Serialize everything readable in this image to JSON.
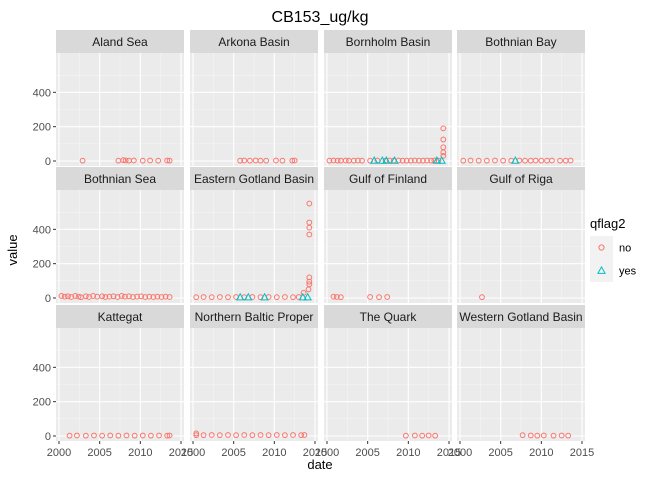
{
  "chart_data": {
    "type": "scatter",
    "title": "CB153_ug/kg",
    "xlabel": "date",
    "ylabel": "value",
    "xlim": [
      2000,
      2015
    ],
    "ylim": [
      0,
      600
    ],
    "x_ticks": [
      2000,
      2005,
      2010,
      2015
    ],
    "y_ticks": [
      0,
      200,
      400
    ],
    "grid": true,
    "legend": {
      "title": "qflag2",
      "position": "right",
      "entries": [
        {
          "label": "no",
          "shape": "circle",
          "color": "#F8766D"
        },
        {
          "label": "yes",
          "shape": "triangle",
          "color": "#00BFC4"
        }
      ]
    },
    "panels": [
      {
        "name": "Aland Sea",
        "no": [
          [
            2002.9,
            2
          ],
          [
            2007.3,
            2
          ],
          [
            2007.9,
            5
          ],
          [
            2008.2,
            3
          ],
          [
            2008.6,
            2
          ],
          [
            2009.2,
            3
          ],
          [
            2010.3,
            2
          ],
          [
            2011.2,
            3
          ],
          [
            2012.2,
            2
          ],
          [
            2013.3,
            3
          ],
          [
            2013.6,
            2
          ]
        ],
        "yes": []
      },
      {
        "name": "Arkona Basin",
        "no": [
          [
            2005.8,
            2
          ],
          [
            2006.3,
            3
          ],
          [
            2007.0,
            2
          ],
          [
            2007.7,
            3
          ],
          [
            2008.3,
            2
          ],
          [
            2009.0,
            2
          ],
          [
            2010.2,
            3
          ],
          [
            2011.0,
            2
          ],
          [
            2012.2,
            2
          ],
          [
            2012.5,
            3
          ]
        ],
        "yes": []
      },
      {
        "name": "Bornholm Basin",
        "no": [
          [
            2000.3,
            2
          ],
          [
            2000.8,
            3
          ],
          [
            2001.3,
            2
          ],
          [
            2001.7,
            2
          ],
          [
            2002.3,
            3
          ],
          [
            2002.7,
            2
          ],
          [
            2003.3,
            2
          ],
          [
            2003.8,
            3
          ],
          [
            2004.3,
            2
          ],
          [
            2005.3,
            2
          ],
          [
            2006.2,
            3
          ],
          [
            2007.2,
            2
          ],
          [
            2007.7,
            3
          ],
          [
            2008.2,
            2
          ],
          [
            2008.8,
            3
          ],
          [
            2009.3,
            2
          ],
          [
            2009.8,
            2
          ],
          [
            2010.3,
            2
          ],
          [
            2010.8,
            3
          ],
          [
            2011.3,
            2
          ],
          [
            2011.8,
            2
          ],
          [
            2012.3,
            3
          ],
          [
            2012.8,
            2
          ],
          [
            2013.2,
            3
          ],
          [
            2013.7,
            2
          ],
          [
            2014.3,
            30
          ],
          [
            2014.3,
            50
          ],
          [
            2014.3,
            80
          ],
          [
            2014.3,
            125
          ],
          [
            2014.3,
            190
          ]
        ],
        "yes": [
          [
            2005.8,
            3
          ],
          [
            2006.8,
            3
          ],
          [
            2007.3,
            3
          ],
          [
            2008.3,
            3
          ],
          [
            2013.5,
            3
          ],
          [
            2014.1,
            3
          ]
        ]
      },
      {
        "name": "Bothnian Bay",
        "no": [
          [
            2000.4,
            2
          ],
          [
            2001.3,
            3
          ],
          [
            2002.3,
            2
          ],
          [
            2003.3,
            2
          ],
          [
            2004.3,
            3
          ],
          [
            2005.3,
            2
          ],
          [
            2006.3,
            2
          ],
          [
            2007.3,
            3
          ],
          [
            2008.0,
            2
          ],
          [
            2008.7,
            2
          ],
          [
            2009.3,
            3
          ],
          [
            2010.0,
            2
          ],
          [
            2010.7,
            2
          ],
          [
            2011.3,
            3
          ],
          [
            2012.3,
            2
          ],
          [
            2013.0,
            2
          ],
          [
            2013.6,
            3
          ]
        ],
        "yes": [
          [
            2006.8,
            3
          ]
        ]
      },
      {
        "name": "Bothnian Sea",
        "no": [
          [
            2000.3,
            12
          ],
          [
            2000.7,
            8
          ],
          [
            2001.1,
            10
          ],
          [
            2001.5,
            6
          ],
          [
            2002.0,
            12
          ],
          [
            2002.4,
            8
          ],
          [
            2002.7,
            5
          ],
          [
            2003.3,
            10
          ],
          [
            2003.7,
            6
          ],
          [
            2004.2,
            12
          ],
          [
            2004.7,
            8
          ],
          [
            2005.3,
            10
          ],
          [
            2005.7,
            6
          ],
          [
            2006.2,
            8
          ],
          [
            2006.7,
            10
          ],
          [
            2007.2,
            6
          ],
          [
            2007.7,
            12
          ],
          [
            2008.1,
            8
          ],
          [
            2008.6,
            10
          ],
          [
            2009.1,
            6
          ],
          [
            2009.6,
            8
          ],
          [
            2010.1,
            10
          ],
          [
            2010.6,
            6
          ],
          [
            2011.1,
            8
          ],
          [
            2011.6,
            6
          ],
          [
            2012.1,
            8
          ],
          [
            2012.6,
            6
          ],
          [
            2013.1,
            8
          ],
          [
            2013.6,
            6
          ]
        ],
        "yes": []
      },
      {
        "name": "Eastern Gotland Basin",
        "no": [
          [
            2000.4,
            5
          ],
          [
            2001.3,
            6
          ],
          [
            2002.3,
            5
          ],
          [
            2003.3,
            6
          ],
          [
            2004.3,
            5
          ],
          [
            2005.3,
            6
          ],
          [
            2006.3,
            5
          ],
          [
            2007.3,
            6
          ],
          [
            2008.3,
            5
          ],
          [
            2009.3,
            6
          ],
          [
            2010.3,
            5
          ],
          [
            2011.3,
            6
          ],
          [
            2012.3,
            5
          ],
          [
            2013.0,
            6
          ],
          [
            2013.6,
            30
          ],
          [
            2014.2,
            50
          ],
          [
            2014.3,
            80
          ],
          [
            2014.3,
            95
          ],
          [
            2014.3,
            120
          ],
          [
            2014.3,
            370
          ],
          [
            2014.3,
            410
          ],
          [
            2014.3,
            440
          ],
          [
            2014.3,
            550
          ]
        ],
        "yes": [
          [
            2005.8,
            5
          ],
          [
            2006.8,
            5
          ],
          [
            2008.8,
            5
          ],
          [
            2013.5,
            5
          ],
          [
            2014.1,
            5
          ]
        ]
      },
      {
        "name": "Gulf of Finland",
        "no": [
          [
            2000.8,
            8
          ],
          [
            2001.2,
            6
          ],
          [
            2001.7,
            5
          ],
          [
            2005.3,
            6
          ],
          [
            2006.4,
            5
          ],
          [
            2007.4,
            6
          ]
        ],
        "yes": []
      },
      {
        "name": "Gulf of Riga",
        "no": [
          [
            2002.7,
            5
          ]
        ],
        "yes": []
      },
      {
        "name": "Kattegat",
        "no": [
          [
            2001.3,
            2
          ],
          [
            2002.2,
            3
          ],
          [
            2003.3,
            2
          ],
          [
            2004.3,
            3
          ],
          [
            2005.3,
            2
          ],
          [
            2006.3,
            3
          ],
          [
            2007.3,
            2
          ],
          [
            2008.3,
            3
          ],
          [
            2009.3,
            2
          ],
          [
            2010.3,
            3
          ],
          [
            2011.3,
            2
          ],
          [
            2012.3,
            3
          ],
          [
            2013.3,
            2
          ],
          [
            2013.6,
            3
          ]
        ],
        "yes": []
      },
      {
        "name": "Northern Baltic Proper",
        "no": [
          [
            2000.4,
            15
          ],
          [
            2000.4,
            5
          ],
          [
            2001.3,
            5
          ],
          [
            2002.3,
            6
          ],
          [
            2003.3,
            5
          ],
          [
            2004.3,
            6
          ],
          [
            2005.3,
            5
          ],
          [
            2006.3,
            6
          ],
          [
            2007.3,
            5
          ],
          [
            2008.3,
            6
          ],
          [
            2009.3,
            5
          ],
          [
            2010.3,
            6
          ],
          [
            2011.3,
            5
          ],
          [
            2012.3,
            6
          ],
          [
            2013.3,
            5
          ],
          [
            2013.7,
            6
          ]
        ],
        "yes": []
      },
      {
        "name": "The Quark",
        "no": [
          [
            2009.7,
            2
          ],
          [
            2010.8,
            3
          ],
          [
            2011.7,
            2
          ],
          [
            2012.5,
            3
          ],
          [
            2013.3,
            2
          ]
        ],
        "yes": []
      },
      {
        "name": "Western Gotland Basin",
        "no": [
          [
            2007.7,
            5
          ],
          [
            2008.7,
            3
          ],
          [
            2009.5,
            2
          ],
          [
            2010.3,
            3
          ],
          [
            2011.5,
            2
          ],
          [
            2012.5,
            3
          ],
          [
            2013.3,
            2
          ]
        ],
        "yes": []
      }
    ]
  }
}
